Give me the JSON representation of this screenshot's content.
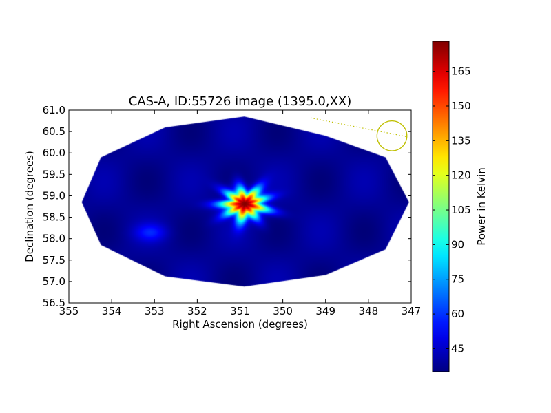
{
  "chart_data": {
    "type": "heatmap",
    "title": "CAS-A, ID:55726 image (1395.0,XX)",
    "xlabel": "Right Ascension (degrees)",
    "ylabel": "Declination (degrees)",
    "colorbar_label": "Power in Kelvin",
    "xlim": [
      355,
      347
    ],
    "ylim": [
      56.5,
      61.0
    ],
    "x_ticks": [
      "355",
      "354",
      "353",
      "352",
      "351",
      "350",
      "349",
      "348",
      "347"
    ],
    "y_ticks": [
      "56.5",
      "57.0",
      "57.5",
      "58.0",
      "58.5",
      "59.0",
      "59.5",
      "60.0",
      "60.5",
      "61.0"
    ],
    "colorbar_range": [
      35,
      178
    ],
    "colorbar_ticks": [
      "45",
      "60",
      "75",
      "90",
      "105",
      "120",
      "135",
      "150",
      "165"
    ],
    "colormap": "jet",
    "grid": false,
    "background_level": 38,
    "footprint_boundary": [
      [
        354.7,
        58.85
      ],
      [
        354.25,
        59.9
      ],
      [
        352.75,
        60.6
      ],
      [
        350.9,
        60.85
      ],
      [
        349.0,
        60.4
      ],
      [
        347.6,
        59.9
      ],
      [
        347.05,
        58.85
      ],
      [
        347.6,
        57.75
      ],
      [
        349.0,
        57.15
      ],
      [
        350.9,
        56.88
      ],
      [
        352.75,
        57.12
      ],
      [
        354.25,
        57.85
      ]
    ],
    "sources": [
      {
        "ra": 350.9,
        "dec": 58.82,
        "peak": 178,
        "sigma_ra": 0.45,
        "sigma_dec": 0.32
      },
      {
        "ra": 353.1,
        "dec": 58.15,
        "peak": 55,
        "sigma_ra": 0.35,
        "sigma_dec": 0.2
      }
    ],
    "beam_circle": {
      "ra": 347.45,
      "dec": 60.4,
      "radius_ra": 0.35,
      "color": "#bfbf00"
    },
    "beam_line": {
      "from": [
        349.35,
        60.82
      ],
      "to": [
        347.1,
        60.38
      ],
      "color": "#bfbf00"
    }
  }
}
